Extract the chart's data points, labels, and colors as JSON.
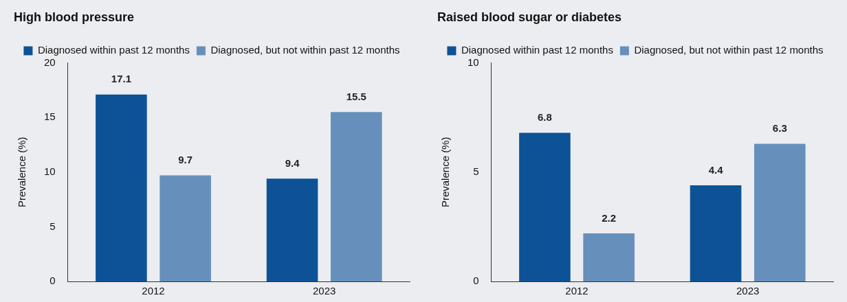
{
  "chart_data": [
    {
      "type": "bar",
      "title": "High blood pressure",
      "ylabel": "Prevalence (%)",
      "categories": [
        "2012",
        "2023"
      ],
      "series": [
        {
          "name": "Diagnosed within past 12 months",
          "color": "#0d5296",
          "values": [
            17.1,
            9.4
          ]
        },
        {
          "name": "Diagnosed, but not within past 12 months",
          "color": "#6690bb",
          "values": [
            9.7,
            15.5
          ]
        }
      ],
      "ylim": [
        0,
        20
      ],
      "yticks": [
        0,
        5,
        10,
        15,
        20
      ],
      "grid": false,
      "legend": "top",
      "data_labels": true
    },
    {
      "type": "bar",
      "title": "Raised blood sugar or diabetes",
      "ylabel": "Prevalence (%)",
      "categories": [
        "2012",
        "2023"
      ],
      "series": [
        {
          "name": "Diagnosed within past 12 months",
          "color": "#0d5296",
          "values": [
            6.8,
            4.4
          ]
        },
        {
          "name": "Diagnosed, but not within past 12 months",
          "color": "#6690bb",
          "values": [
            2.2,
            6.3
          ]
        }
      ],
      "ylim": [
        0,
        10
      ],
      "yticks": [
        0,
        5,
        10
      ],
      "grid": false,
      "legend": "top",
      "data_labels": true
    }
  ]
}
